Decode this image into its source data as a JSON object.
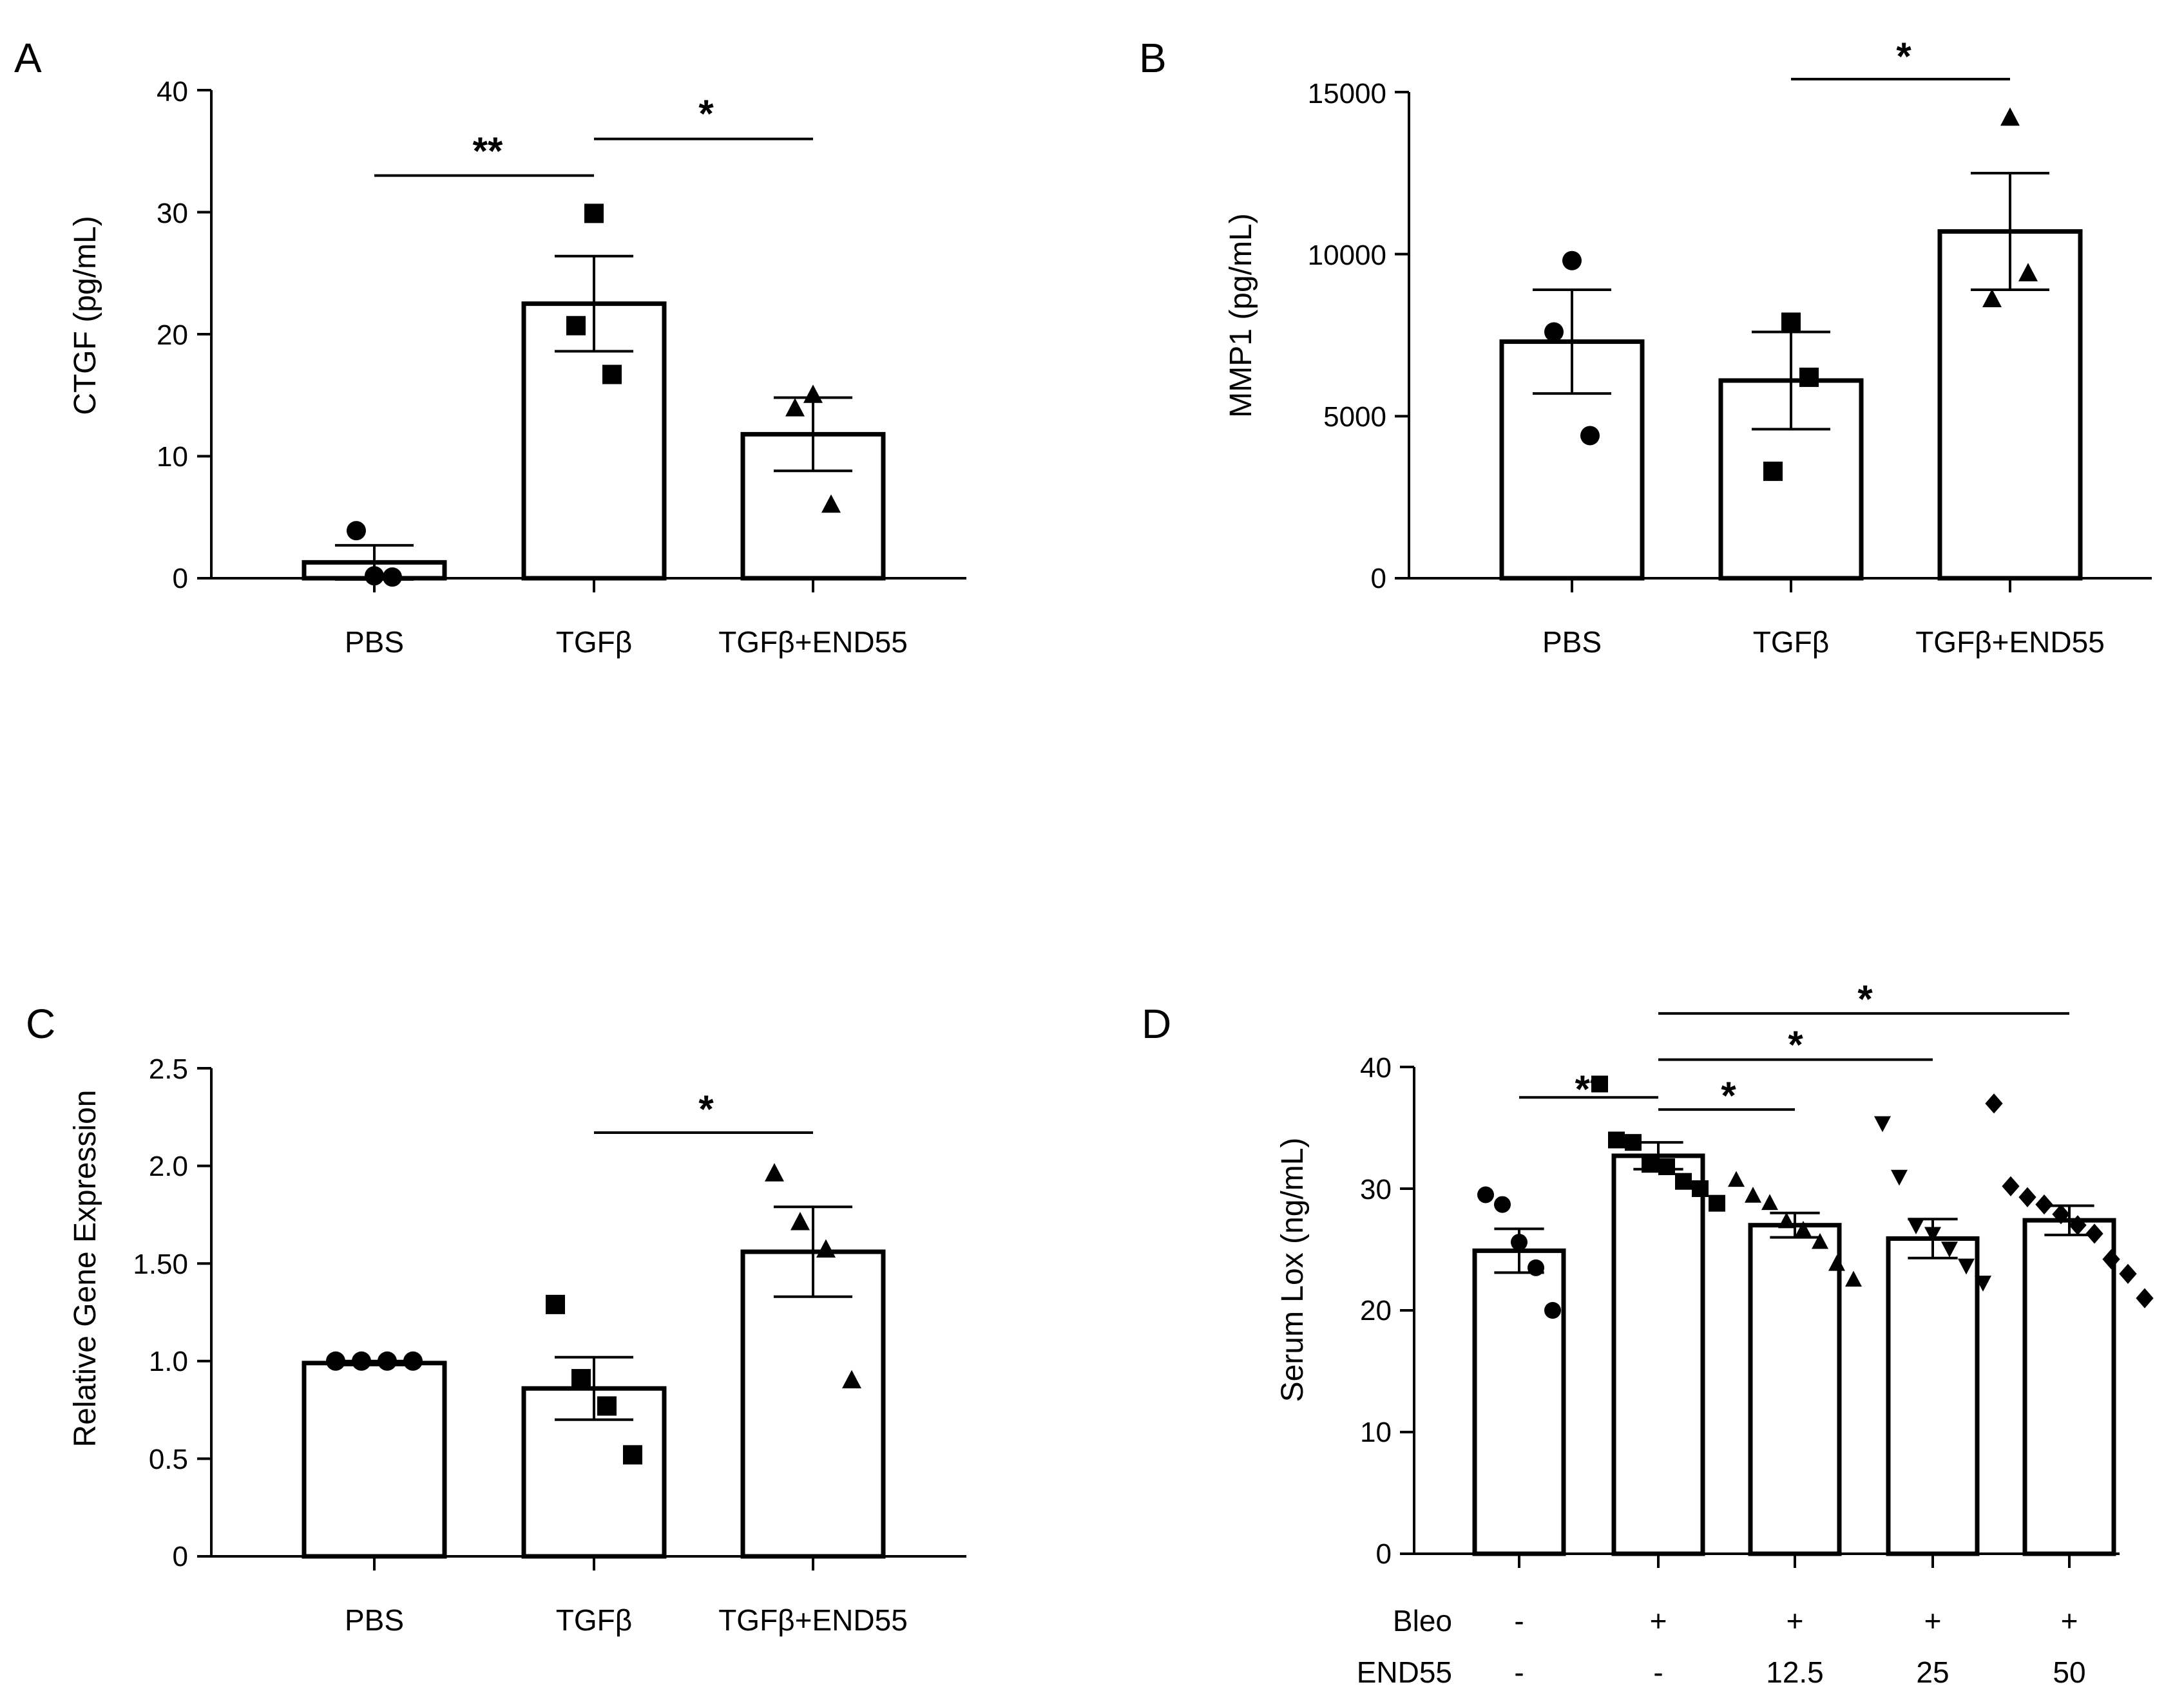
{
  "chart_data": [
    {
      "panel": "A",
      "type": "bar",
      "ylabel": "CTGF (pg/mL)",
      "ylim": [
        0,
        40
      ],
      "yticks": [
        "0",
        "10",
        "20",
        "30",
        "40"
      ],
      "categories": [
        "PBS",
        "TGFβ",
        "TGFβ+END55"
      ],
      "values": [
        1.3,
        22.5,
        11.8
      ],
      "errors": [
        1.4,
        3.9,
        3.0
      ],
      "points": [
        [
          0.2,
          3.9,
          0.1
        ],
        [
          29.9,
          20.7,
          16.7
        ],
        [
          15.0,
          13.9,
          6.0
        ]
      ],
      "markers": [
        "circle",
        "square",
        "triangle"
      ],
      "significance": [
        {
          "from": 0,
          "to": 1,
          "label": "**",
          "y": 33
        },
        {
          "from": 1,
          "to": 2,
          "label": "*",
          "y": 36
        }
      ]
    },
    {
      "panel": "B",
      "type": "bar",
      "ylabel": "MMP1 (pg/mL)",
      "ylim": [
        0,
        15000
      ],
      "yticks": [
        "0",
        "5000",
        "10000",
        "15000"
      ],
      "categories": [
        "PBS",
        "TGFβ",
        "TGFβ+END55"
      ],
      "values": [
        7300,
        6100,
        10700
      ],
      "errors": [
        1600,
        1500,
        1800
      ],
      "points": [
        [
          9800,
          7600,
          4400
        ],
        [
          7900,
          3300,
          6200
        ],
        [
          14200,
          8600,
          9400
        ]
      ],
      "markers": [
        "circle",
        "square",
        "triangle"
      ],
      "significance": [
        {
          "from": 1,
          "to": 2,
          "label": "*",
          "y": 15400
        }
      ]
    },
    {
      "panel": "C",
      "type": "bar",
      "ylabel": "Relative Gene Expression",
      "ylim": [
        0,
        2.5
      ],
      "yticks": [
        "0",
        "0.5",
        "1.0",
        "1.50",
        "2.0",
        "2.5"
      ],
      "categories": [
        "PBS",
        "TGFβ",
        "TGFβ+END55"
      ],
      "values": [
        0.99,
        0.86,
        1.56
      ],
      "errors": [
        0.01,
        0.16,
        0.23
      ],
      "points": [
        [
          1.0,
          1.0,
          1.0,
          1.0
        ],
        [
          1.29,
          0.91,
          0.77,
          0.52
        ],
        [
          1.96,
          1.71,
          1.57,
          0.9
        ]
      ],
      "markers": [
        "circle",
        "square",
        "triangle"
      ],
      "significance": [
        {
          "from": 1,
          "to": 2,
          "label": "*",
          "y": 2.17
        }
      ]
    },
    {
      "panel": "D",
      "type": "bar",
      "ylabel": "Serum Lox (ng/mL)",
      "ylim": [
        0,
        40
      ],
      "yticks": [
        "0",
        "10",
        "20",
        "30",
        "40"
      ],
      "row_labels": [
        "Bleo",
        "END55"
      ],
      "rows": [
        [
          "-",
          "+",
          "+",
          "+",
          "+"
        ],
        [
          "-",
          "-",
          "12.5",
          "25",
          "50"
        ]
      ],
      "values": [
        24.9,
        32.7,
        27.0,
        25.9,
        27.4
      ],
      "errors": [
        1.8,
        1.1,
        1.0,
        1.6,
        1.2
      ],
      "points": [
        [
          29.5,
          28.7,
          25.6,
          23.5,
          20.0
        ],
        [
          38.6,
          34.0,
          33.8,
          32.0,
          31.8,
          30.6,
          30.0,
          28.8
        ],
        [
          30.7,
          29.4,
          28.8,
          27.3,
          26.6,
          25.6,
          23.8,
          22.5
        ],
        [
          35.4,
          31.0,
          27.0,
          26.3,
          25.1,
          23.7,
          22.3
        ],
        [
          37.0,
          30.2,
          29.3,
          28.7,
          27.9,
          27.0,
          26.3,
          24.2,
          23.0,
          21.0
        ]
      ],
      "markers": [
        "circle",
        "square",
        "triangle",
        "triangle-down",
        "diamond"
      ],
      "significance": [
        {
          "from": 0,
          "to": 1,
          "label": "**",
          "y": 37.5
        },
        {
          "from": 1,
          "to": 2,
          "label": "*",
          "y": 36.5
        },
        {
          "from": 1,
          "to": 3,
          "label": "*",
          "y": 40.6
        },
        {
          "from": 1,
          "to": 4,
          "label": "*",
          "y": 44.4
        }
      ]
    }
  ]
}
